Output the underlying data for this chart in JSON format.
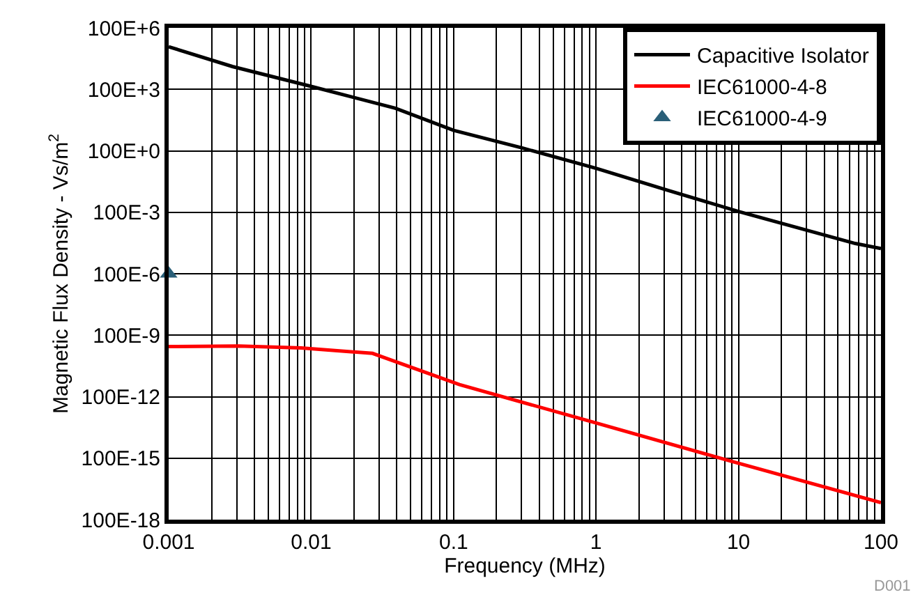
{
  "chart_data": {
    "type": "line",
    "xlabel": "Frequency (MHz)",
    "ylabel": "Magnetic Flux Density - Vs/m$^{2}$",
    "log": "xy",
    "grid": true,
    "legend": "top right",
    "xlim": [
      0.001,
      100
    ],
    "xticks": [
      0.001,
      0.01,
      0.1,
      1,
      10,
      100
    ],
    "ylim": [
      1e-16,
      100000000.0
    ],
    "yticks": [
      {
        "value": 100000000.0,
        "label": "100E+6"
      },
      {
        "value": 100000.0,
        "label": "100E+3"
      },
      {
        "value": 100,
        "label": "100E+0"
      },
      {
        "value": 0.1,
        "label": "100E-3"
      },
      {
        "value": 0.0001,
        "label": "100E-6"
      },
      {
        "value": 1e-07,
        "label": "100E-9"
      },
      {
        "value": 1e-10,
        "label": "100E-12"
      },
      {
        "value": 1e-13,
        "label": "100E-15"
      },
      {
        "value": 1e-16,
        "label": "100E-18"
      }
    ],
    "series": [
      {
        "name": "Capacitive Isolator",
        "color": "#000000",
        "x": [
          0.001,
          0.0028,
          0.01,
          0.039,
          0.1,
          0.3,
          1,
          3.3,
          10,
          66,
          100
        ],
        "values": [
          12000000.0,
          1300000.0,
          140000.0,
          12000.0,
          1000,
          140,
          14,
          1.1,
          0.11,
          0.003,
          0.0017
        ]
      },
      {
        "name": "IEC61000-4-8",
        "color": "#ff0000",
        "x": [
          0.001,
          0.0031,
          0.0085,
          0.027,
          0.11,
          0.85,
          8.7,
          100
        ],
        "values": [
          2.8e-08,
          3e-08,
          2.4e-08,
          1.3e-08,
          3.9e-10,
          7.2e-12,
          7.4e-14,
          6.8e-16
        ]
      },
      {
        "name": "IEC61000-4-9",
        "color": "#2a5f78",
        "type": "scatter",
        "marker": "triangle",
        "x": [
          0.001
        ],
        "values": [
          0.0001
        ]
      }
    ],
    "annotations": [
      "D001"
    ]
  }
}
